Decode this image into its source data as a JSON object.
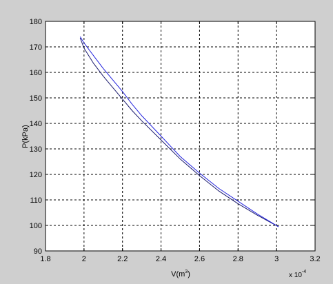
{
  "chart_data": {
    "type": "line",
    "xlabel": "V(m",
    "xlabel_sup": "3",
    "xlabel_end": ")",
    "ylabel": "P(kPa)",
    "x_multiplier_base": "x 10",
    "x_multiplier_exp": "-4",
    "xlim": [
      1.8,
      3.2
    ],
    "ylim": [
      90,
      180
    ],
    "xticks": [
      1.8,
      2,
      2.2,
      2.4,
      2.6,
      2.8,
      3,
      3.2
    ],
    "xtick_labels": [
      "1.8",
      "2",
      "2.2",
      "2.4",
      "2.6",
      "2.8",
      "3",
      "3.2"
    ],
    "yticks": [
      90,
      100,
      110,
      120,
      130,
      140,
      150,
      160,
      170,
      180
    ],
    "ytick_labels": [
      "90",
      "100",
      "110",
      "120",
      "130",
      "140",
      "150",
      "160",
      "170",
      "180"
    ],
    "grid": true,
    "series": [
      {
        "color": "#1a1a6e",
        "x": [
          1.98,
          2.0,
          2.05,
          2.1,
          2.15,
          2.2,
          2.25,
          2.3,
          2.4,
          2.5,
          2.6,
          2.7,
          2.8,
          2.9,
          3.01
        ],
        "y": [
          173.5,
          169.5,
          163.5,
          158.5,
          154.0,
          149.5,
          145.0,
          141.0,
          133.5,
          126.0,
          119.5,
          113.5,
          108.5,
          104.0,
          99.5
        ]
      },
      {
        "color": "#2222dd",
        "x": [
          1.98,
          2.0,
          2.05,
          2.1,
          2.15,
          2.2,
          2.25,
          2.3,
          2.4,
          2.5,
          2.6,
          2.7,
          2.8,
          2.9,
          3.01
        ],
        "y": [
          174.0,
          171.5,
          166.5,
          161.5,
          157.0,
          152.5,
          147.5,
          143.0,
          135.0,
          127.0,
          120.5,
          114.5,
          109.5,
          104.5,
          99.5
        ]
      }
    ]
  }
}
